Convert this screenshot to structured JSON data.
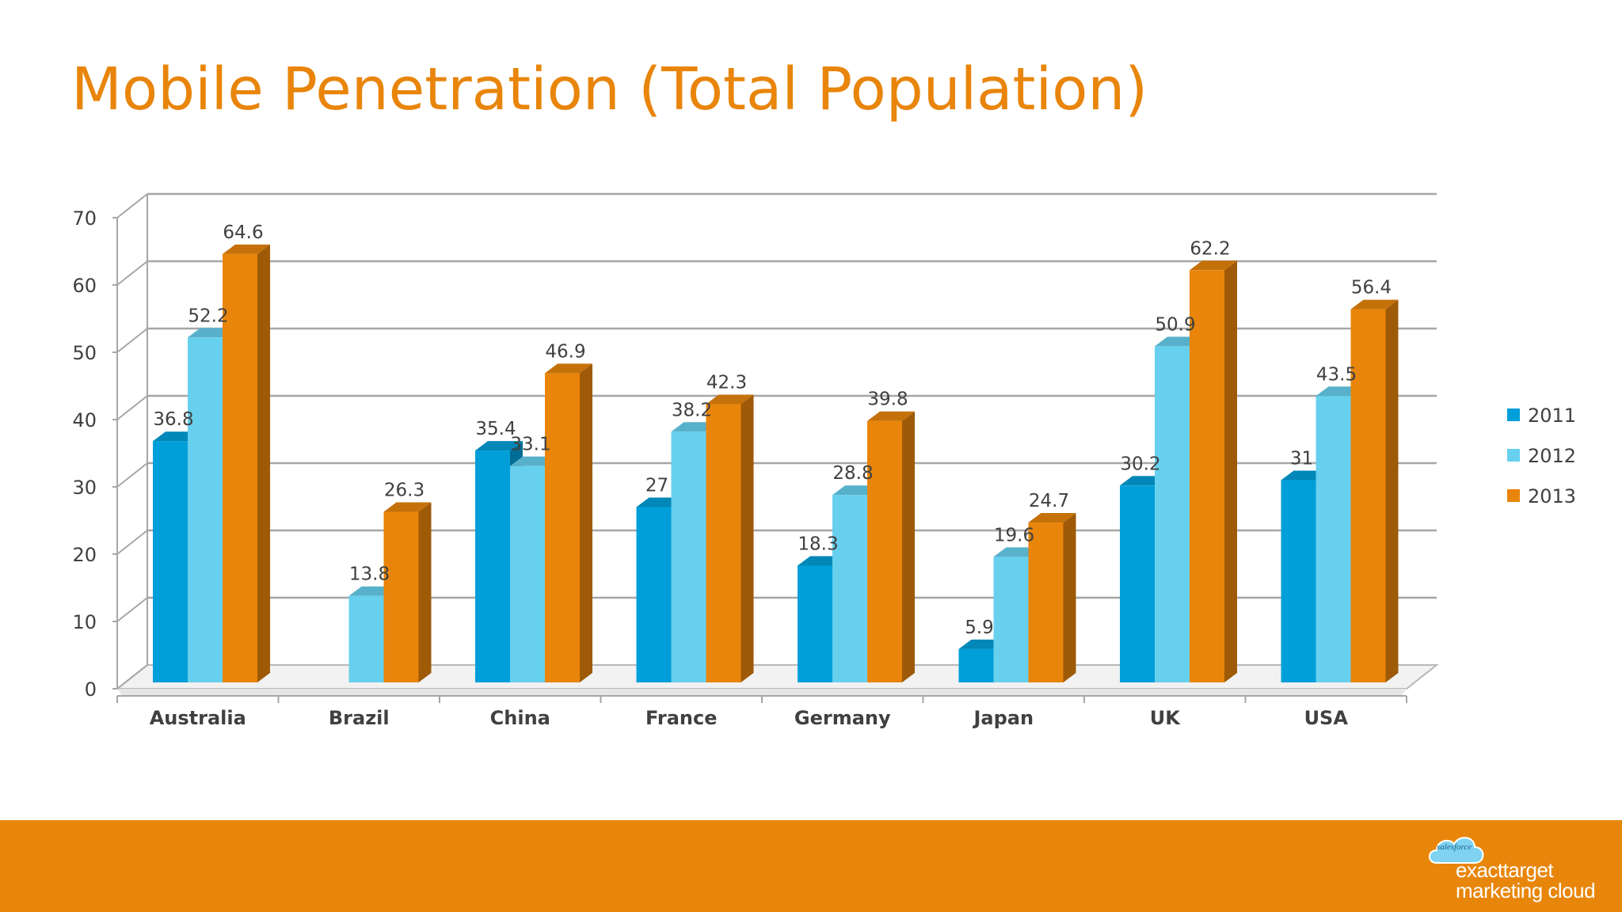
{
  "page": {
    "title": "Mobile Penetration (Total Population)"
  },
  "footer": {
    "logo_cloud_text": "salesforce",
    "logo_line1": "exacttarget",
    "logo_line2": "marketing cloud",
    "bar_color": "#e8860b"
  },
  "chart_data": {
    "type": "bar",
    "title": "Mobile Penetration (Total Population)",
    "categories": [
      "Australia",
      "Brazil",
      "China",
      "France",
      "Germany",
      "Japan",
      "UK",
      "USA"
    ],
    "series": [
      {
        "name": "2011",
        "color": "#019fd9",
        "values": [
          36.8,
          null,
          35.4,
          27,
          18.3,
          5.9,
          30.2,
          31
        ]
      },
      {
        "name": "2012",
        "color": "#67d0ee",
        "values": [
          52.2,
          13.8,
          33.1,
          38.2,
          28.8,
          19.6,
          50.9,
          43.5
        ]
      },
      {
        "name": "2013",
        "color": "#e8850a",
        "values": [
          64.6,
          26.3,
          46.9,
          42.3,
          39.8,
          24.7,
          62.2,
          56.4
        ]
      }
    ],
    "y_ticks": [
      "0",
      "10",
      "20",
      "30",
      "40",
      "50",
      "60",
      "70"
    ],
    "ylim": [
      0,
      70
    ],
    "xlabel": "",
    "ylabel": "",
    "grid": true,
    "legend_position": "right"
  }
}
